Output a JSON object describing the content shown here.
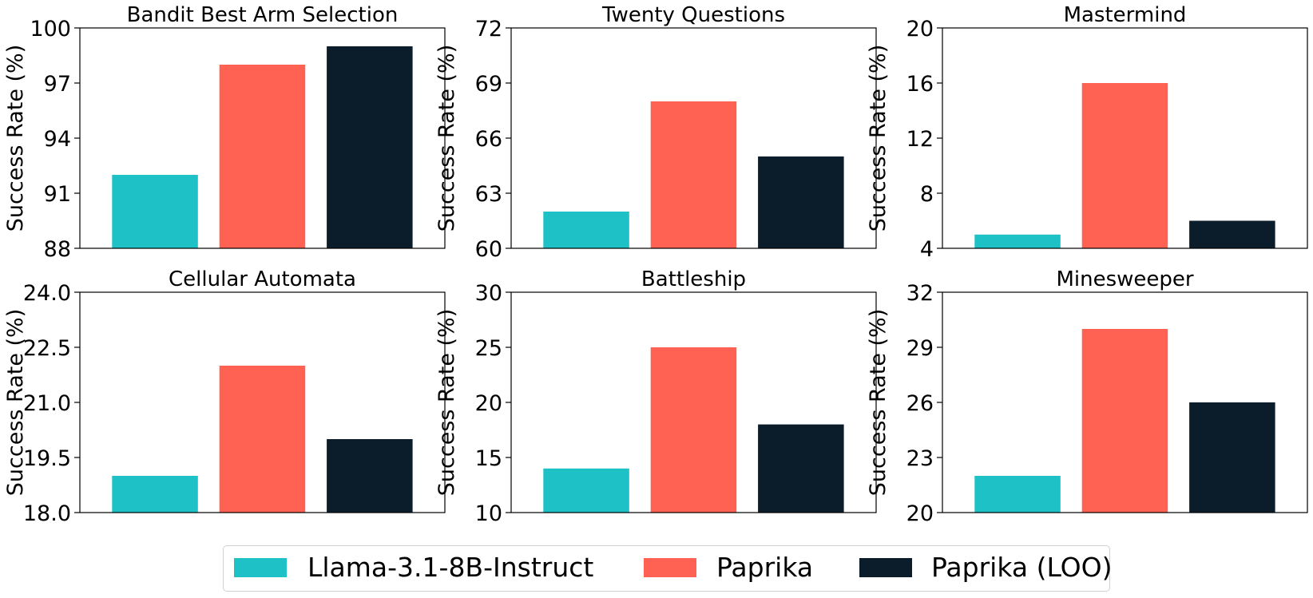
{
  "colors": {
    "llama": "#1dc1c6",
    "paprika": "#ff6152",
    "paprika_loo": "#0b1c2b"
  },
  "legend": {
    "items": [
      {
        "label": "Llama-3.1-8B-Instruct",
        "color_key": "llama"
      },
      {
        "label": "Paprika",
        "color_key": "paprika"
      },
      {
        "label": "Paprika (LOO)",
        "color_key": "paprika_loo"
      }
    ]
  },
  "chart_data": [
    {
      "type": "bar",
      "title": "Bandit Best Arm Selection",
      "ylabel": "Success Rate (%)",
      "categories": [
        "Llama-3.1-8B-Instruct",
        "Paprika",
        "Paprika (LOO)"
      ],
      "values": [
        92,
        98,
        99
      ],
      "ylim": [
        88,
        100
      ],
      "yticks": [
        "88",
        "91",
        "94",
        "97",
        "100"
      ]
    },
    {
      "type": "bar",
      "title": "Twenty Questions",
      "ylabel": "Success Rate (%)",
      "categories": [
        "Llama-3.1-8B-Instruct",
        "Paprika",
        "Paprika (LOO)"
      ],
      "values": [
        62,
        68,
        65
      ],
      "ylim": [
        60,
        72
      ],
      "yticks": [
        "60",
        "63",
        "66",
        "69",
        "72"
      ]
    },
    {
      "type": "bar",
      "title": "Mastermind",
      "ylabel": "Success Rate (%)",
      "categories": [
        "Llama-3.1-8B-Instruct",
        "Paprika",
        "Paprika (LOO)"
      ],
      "values": [
        5,
        16,
        6
      ],
      "ylim": [
        4,
        20
      ],
      "yticks": [
        "4",
        "8",
        "12",
        "16",
        "20"
      ]
    },
    {
      "type": "bar",
      "title": "Cellular Automata",
      "ylabel": "Success Rate (%)",
      "categories": [
        "Llama-3.1-8B-Instruct",
        "Paprika",
        "Paprika (LOO)"
      ],
      "values": [
        19,
        22,
        20
      ],
      "ylim": [
        18,
        24
      ],
      "yticks": [
        "18.0",
        "19.5",
        "21.0",
        "22.5",
        "24.0"
      ]
    },
    {
      "type": "bar",
      "title": "Battleship",
      "ylabel": "Success Rate (%)",
      "categories": [
        "Llama-3.1-8B-Instruct",
        "Paprika",
        "Paprika (LOO)"
      ],
      "values": [
        14,
        25,
        18
      ],
      "ylim": [
        10,
        30
      ],
      "yticks": [
        "10",
        "15",
        "20",
        "25",
        "30"
      ]
    },
    {
      "type": "bar",
      "title": "Minesweeper",
      "ylabel": "Success Rate (%)",
      "categories": [
        "Llama-3.1-8B-Instruct",
        "Paprika",
        "Paprika (LOO)"
      ],
      "values": [
        22,
        30,
        26
      ],
      "ylim": [
        20,
        32
      ],
      "yticks": [
        "20",
        "23",
        "26",
        "29",
        "32"
      ]
    }
  ]
}
